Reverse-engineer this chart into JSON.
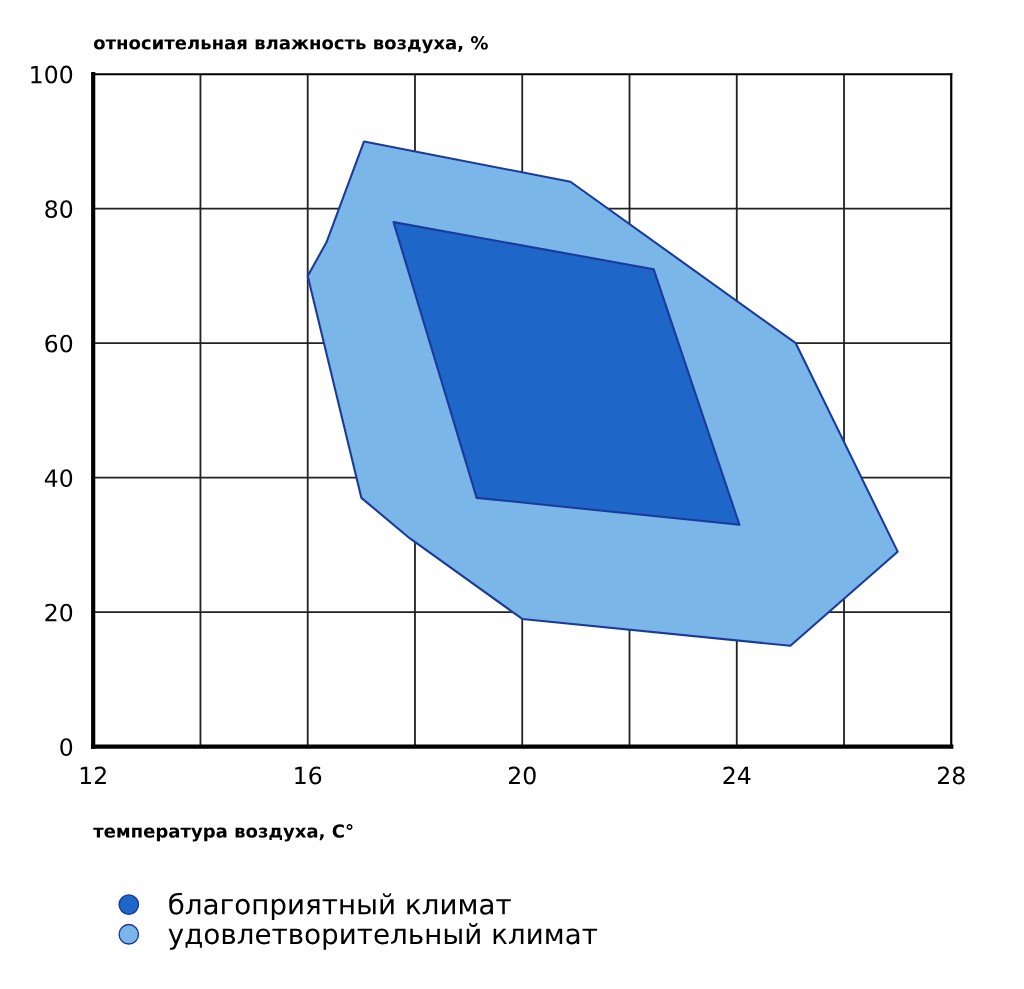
{
  "chart_data": {
    "type": "area",
    "ylabel": "относительная влажность воздуха, %",
    "xlabel": "температура воздуха, C°",
    "xlim": [
      12,
      28
    ],
    "ylim": [
      0,
      100
    ],
    "xticks": [
      12,
      {
        "value": 14,
        "label": null
      },
      16,
      {
        "value": 18,
        "label": null
      },
      20,
      {
        "value": 22,
        "label": null
      },
      24,
      {
        "value": 26,
        "label": null
      },
      28
    ],
    "yticks": [
      0,
      20,
      40,
      60,
      80,
      100
    ],
    "grid": true,
    "legend": "bottom left",
    "series": [
      {
        "name": "удовлетворительный климат",
        "color": "#7ab6e8",
        "x": [
          16.0,
          16.35,
          17.05,
          20.9,
          25.1,
          27.0,
          25.0,
          20.0,
          17.9,
          17.0
        ],
        "values": [
          70,
          75,
          90,
          84,
          60,
          29,
          15,
          19,
          31,
          37
        ]
      },
      {
        "name": "благоприятный климат",
        "color": "#1f66c9",
        "x": [
          17.6,
          22.45,
          24.05,
          19.15
        ],
        "values": [
          78,
          71,
          33,
          37
        ]
      }
    ]
  }
}
